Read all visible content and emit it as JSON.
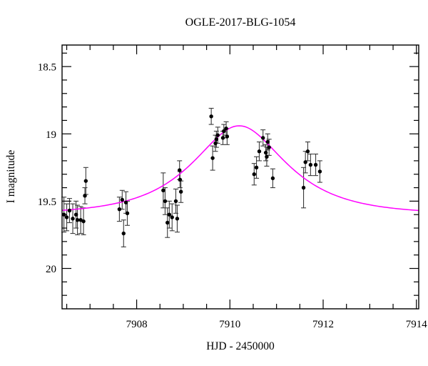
{
  "figure": {
    "title": "OGLE-2017-BLG-1054"
  },
  "chart_data": {
    "type": "scatter",
    "title": "OGLE-2017-BLG-1054",
    "xlabel": "HJD - 2450000",
    "ylabel": "I magnitude",
    "x_range": [
      7906.4,
      7914.05
    ],
    "y_range": [
      18.34,
      20.3
    ],
    "y_axis_inverted": true,
    "grid": false,
    "legend": null,
    "x_major_ticks": [
      {
        "value": 7908,
        "label": "7908"
      },
      {
        "value": 7910,
        "label": "7910"
      },
      {
        "value": 7912,
        "label": "7912"
      },
      {
        "value": 7914,
        "label": "7914"
      }
    ],
    "x_minor_tick_step": 0.5,
    "y_major_ticks": [
      {
        "value": 18.5,
        "label": "18.5"
      },
      {
        "value": 19.0,
        "label": "19"
      },
      {
        "value": 19.5,
        "label": "19.5"
      },
      {
        "value": 20.0,
        "label": "20"
      }
    ],
    "y_minor_tick_step": 0.1,
    "colors": {
      "model_curve": "#ff00ff",
      "data_points": "#000000",
      "error_bars": "#3a3a3a",
      "axes": "#000000",
      "background": "#ffffff"
    },
    "model_curve": {
      "kind": "paczynski-microlensing",
      "t0": 7910.2,
      "tE_days": 1.55,
      "u0": 0.62,
      "baseline_mag": 19.6,
      "peak_mag": 18.94
    },
    "points": [
      {
        "t": 7906.44,
        "mag": 19.6,
        "err": 0.13
      },
      {
        "t": 7906.5,
        "mag": 19.62,
        "err": 0.1
      },
      {
        "t": 7906.56,
        "mag": 19.57,
        "err": 0.09
      },
      {
        "t": 7906.63,
        "mag": 19.63,
        "err": 0.11
      },
      {
        "t": 7906.7,
        "mag": 19.6,
        "err": 0.1
      },
      {
        "t": 7906.73,
        "mag": 19.64,
        "err": 0.11
      },
      {
        "t": 7906.8,
        "mag": 19.64,
        "err": 0.1
      },
      {
        "t": 7906.86,
        "mag": 19.65,
        "err": 0.1
      },
      {
        "t": 7906.89,
        "mag": 19.46,
        "err": 0.06
      },
      {
        "t": 7906.91,
        "mag": 19.35,
        "err": 0.1
      },
      {
        "t": 7907.63,
        "mag": 19.56,
        "err": 0.09
      },
      {
        "t": 7907.69,
        "mag": 19.49,
        "err": 0.07
      },
      {
        "t": 7907.72,
        "mag": 19.74,
        "err": 0.1
      },
      {
        "t": 7907.77,
        "mag": 19.51,
        "err": 0.08
      },
      {
        "t": 7907.8,
        "mag": 19.59,
        "err": 0.09
      },
      {
        "t": 7908.57,
        "mag": 19.42,
        "err": 0.13
      },
      {
        "t": 7908.61,
        "mag": 19.5,
        "err": 0.1
      },
      {
        "t": 7908.66,
        "mag": 19.66,
        "err": 0.11
      },
      {
        "t": 7908.7,
        "mag": 19.6,
        "err": 0.1
      },
      {
        "t": 7908.76,
        "mag": 19.62,
        "err": 0.1
      },
      {
        "t": 7908.84,
        "mag": 19.5,
        "err": 0.09
      },
      {
        "t": 7908.87,
        "mag": 19.63,
        "err": 0.1
      },
      {
        "t": 7908.92,
        "mag": 19.27,
        "err": 0.07
      },
      {
        "t": 7908.93,
        "mag": 19.34,
        "err": 0.06
      },
      {
        "t": 7908.95,
        "mag": 19.43,
        "err": 0.08
      },
      {
        "t": 7909.6,
        "mag": 18.87,
        "err": 0.06
      },
      {
        "t": 7909.63,
        "mag": 19.18,
        "err": 0.09
      },
      {
        "t": 7909.69,
        "mag": 19.07,
        "err": 0.06
      },
      {
        "t": 7909.71,
        "mag": 19.04,
        "err": 0.06
      },
      {
        "t": 7909.74,
        "mag": 19.01,
        "err": 0.06
      },
      {
        "t": 7909.85,
        "mag": 19.03,
        "err": 0.05
      },
      {
        "t": 7909.87,
        "mag": 18.98,
        "err": 0.05
      },
      {
        "t": 7909.92,
        "mag": 18.96,
        "err": 0.05
      },
      {
        "t": 7909.94,
        "mag": 19.02,
        "err": 0.06
      },
      {
        "t": 7910.52,
        "mag": 19.3,
        "err": 0.08
      },
      {
        "t": 7910.57,
        "mag": 19.25,
        "err": 0.08
      },
      {
        "t": 7910.63,
        "mag": 19.13,
        "err": 0.07
      },
      {
        "t": 7910.71,
        "mag": 19.03,
        "err": 0.06
      },
      {
        "t": 7910.77,
        "mag": 19.14,
        "err": 0.06
      },
      {
        "t": 7910.79,
        "mag": 19.17,
        "err": 0.07
      },
      {
        "t": 7910.81,
        "mag": 19.06,
        "err": 0.06
      },
      {
        "t": 7910.84,
        "mag": 19.1,
        "err": 0.06
      },
      {
        "t": 7910.92,
        "mag": 19.33,
        "err": 0.07
      },
      {
        "t": 7911.58,
        "mag": 19.4,
        "err": 0.15
      },
      {
        "t": 7911.62,
        "mag": 19.21,
        "err": 0.08
      },
      {
        "t": 7911.67,
        "mag": 19.13,
        "err": 0.07
      },
      {
        "t": 7911.73,
        "mag": 19.23,
        "err": 0.08
      },
      {
        "t": 7911.84,
        "mag": 19.23,
        "err": 0.08
      },
      {
        "t": 7911.93,
        "mag": 19.28,
        "err": 0.08
      }
    ]
  }
}
